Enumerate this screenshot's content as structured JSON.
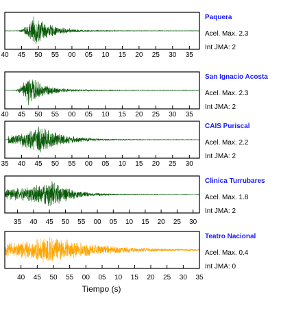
{
  "chart_data": {
    "type": "line",
    "xlabel": "Tiempo (s)",
    "grid": false,
    "legend": "none",
    "panels": [
      {
        "station": "Paquera",
        "acel_label": "Acel. Max. 2.3",
        "int_label": "Int JMA: 2",
        "color": "#0a5c0a",
        "tick_labels": [
          "40",
          "45",
          "50",
          "55",
          "00",
          "05",
          "10",
          "15",
          "20",
          "25",
          "30",
          "35"
        ],
        "tick_seconds": [
          40,
          45,
          50,
          55,
          60,
          65,
          70,
          75,
          80,
          85,
          90,
          95
        ],
        "xlim": [
          40,
          98
        ],
        "envelope": {
          "onset": 44,
          "peak_time": 49,
          "peak_amplitude": 1.0,
          "pre_level": 0.02,
          "decay": 5
        },
        "ylim": [
          -1.05,
          1.05
        ]
      },
      {
        "station": "San Ignacio Acosta",
        "acel_label": "Acel. Max. 2.3",
        "int_label": "Int JMA: 2",
        "color": "#0a5c0a",
        "tick_labels": [
          "40",
          "45",
          "50",
          "55",
          "00",
          "05",
          "10",
          "15",
          "20",
          "25",
          "30",
          "35"
        ],
        "tick_seconds": [
          40,
          45,
          50,
          55,
          60,
          65,
          70,
          75,
          80,
          85,
          90,
          95
        ],
        "xlim": [
          40,
          98
        ],
        "envelope": {
          "onset": 43,
          "peak_time": 47,
          "peak_amplitude": 1.0,
          "pre_level": 0.02,
          "decay": 5
        },
        "ylim": [
          -1.05,
          1.05
        ]
      },
      {
        "station": "CAIS Puriscal",
        "acel_label": "Acel. Max. 2.2",
        "int_label": "Int JMA: 2",
        "color": "#0a5c0a",
        "tick_labels": [
          "35",
          "40",
          "45",
          "50",
          "55",
          "00",
          "05",
          "10",
          "15",
          "20",
          "25",
          "30"
        ],
        "tick_seconds": [
          35,
          40,
          45,
          50,
          55,
          60,
          65,
          70,
          75,
          80,
          85,
          90
        ],
        "xlim": [
          35,
          93
        ],
        "envelope": {
          "onset": 36,
          "peak_time": 46,
          "peak_amplitude": 1.0,
          "pre_level": 0.3,
          "decay": 6
        },
        "ylim": [
          -1.05,
          1.05
        ]
      },
      {
        "station": "Clinica Turrubares",
        "acel_label": "Acel. Max. 1.8",
        "int_label": "Int JMA: 2",
        "color": "#0a5c0a",
        "tick_labels": [
          "35",
          "40",
          "45",
          "50",
          "55",
          "00",
          "05",
          "10",
          "15",
          "20",
          "25",
          "30"
        ],
        "tick_seconds": [
          35,
          40,
          45,
          50,
          55,
          60,
          65,
          70,
          75,
          80,
          85,
          90
        ],
        "xlim": [
          31,
          92
        ],
        "envelope": {
          "onset": 31,
          "peak_time": 46,
          "peak_amplitude": 0.9,
          "pre_level": 0.35,
          "decay": 6
        },
        "ylim": [
          -1.05,
          1.05
        ]
      },
      {
        "station": "Teatro Nacional",
        "acel_label": "Acel. Max. 0.4",
        "int_label": "Int JMA: 0",
        "color": "#ffa500",
        "tick_labels": [
          "40",
          "45",
          "50",
          "55",
          "00",
          "05",
          "10",
          "15",
          "20",
          "25",
          "30",
          "35"
        ],
        "tick_seconds": [
          40,
          45,
          50,
          55,
          60,
          65,
          70,
          75,
          80,
          85,
          90,
          95
        ],
        "xlim": [
          35,
          95
        ],
        "envelope": {
          "onset": 35,
          "peak_time": 49,
          "peak_amplitude": 0.95,
          "pre_level": 0.45,
          "decay": 14
        },
        "ylim": [
          -1.05,
          1.05
        ]
      }
    ]
  }
}
